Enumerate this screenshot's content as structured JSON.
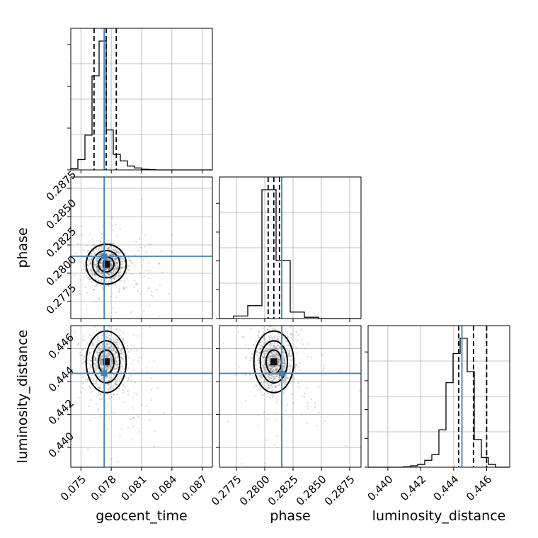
{
  "chart_data": {
    "type": "corner",
    "parameters": [
      "geocent_time",
      "phase",
      "luminosity_distance"
    ],
    "ranges": {
      "geocent_time": [
        0.074,
        0.088
      ],
      "phase": [
        0.276,
        0.2885
      ],
      "luminosity_distance": [
        0.4388,
        0.4474
      ]
    },
    "ticks": {
      "geocent_time": [
        0.075,
        0.078,
        0.081,
        0.084,
        0.087
      ],
      "phase": [
        0.2775,
        0.28,
        0.2825,
        0.285,
        0.2875
      ],
      "luminosity_distance": [
        0.44,
        0.442,
        0.444,
        0.446
      ]
    },
    "tick_labels": {
      "geocent_time": [
        "0.075",
        "0.078",
        "0.081",
        "0.084",
        "0.087"
      ],
      "phase": [
        "0.2775",
        "0.2800",
        "0.2825",
        "0.2850",
        "0.2875"
      ],
      "luminosity_distance": [
        "0.440",
        "0.442",
        "0.444",
        "0.446"
      ]
    },
    "truths": {
      "geocent_time": 0.0773,
      "phase": 0.2815,
      "luminosity_distance": 0.4445
    },
    "quantiles": {
      "geocent_time": [
        0.0763,
        0.0775,
        0.0785
      ],
      "phase": [
        0.2803,
        0.2808,
        0.2813
      ],
      "luminosity_distance": [
        0.4443,
        0.4452,
        0.446
      ]
    },
    "histograms": {
      "geocent_time": {
        "edges": [
          0.074,
          0.0747,
          0.0754,
          0.0761,
          0.0768,
          0.0775,
          0.0782,
          0.0789,
          0.0796,
          0.0803,
          0.081,
          0.0817,
          0.0824,
          0.0831,
          0.0838,
          0.0845,
          0.0852,
          0.0859,
          0.0866,
          0.0873,
          0.088
        ],
        "counts": [
          0.01,
          0.08,
          0.27,
          0.73,
          1.0,
          0.31,
          0.12,
          0.07,
          0.03,
          0.015,
          0.005,
          0.002,
          0,
          0,
          0,
          0,
          0,
          0,
          0,
          0
        ]
      },
      "phase": {
        "edges": [
          0.276,
          0.27725,
          0.2785,
          0.27975,
          0.281,
          0.28225,
          0.2835,
          0.28475,
          0.286,
          0.28725,
          0.2885
        ],
        "counts": [
          0.0,
          0.02,
          0.1,
          1.0,
          0.45,
          0.05,
          0.01,
          0.0,
          0.0,
          0.0
        ]
      },
      "luminosity_distance": {
        "edges": [
          0.4388,
          0.43923,
          0.43966,
          0.44009,
          0.44052,
          0.44095,
          0.44138,
          0.44181,
          0.44224,
          0.44267,
          0.4431,
          0.44353,
          0.44396,
          0.44439,
          0.44482,
          0.44525,
          0.44568,
          0.44611,
          0.44654,
          0.44697,
          0.4474
        ],
        "counts": [
          0,
          0,
          0,
          0,
          0,
          0.003,
          0.01,
          0.02,
          0.05,
          0.09,
          0.27,
          0.61,
          0.82,
          0.93,
          0.69,
          0.2,
          0.07,
          0.02,
          0,
          0
        ]
      }
    },
    "posterior_center": {
      "geocent_time": 0.0775,
      "phase": 0.2808,
      "luminosity_distance": 0.4452
    },
    "posterior_width": {
      "geocent_time": 0.0009,
      "phase": 0.0008,
      "luminosity_distance": 0.00085
    },
    "grid": true
  }
}
